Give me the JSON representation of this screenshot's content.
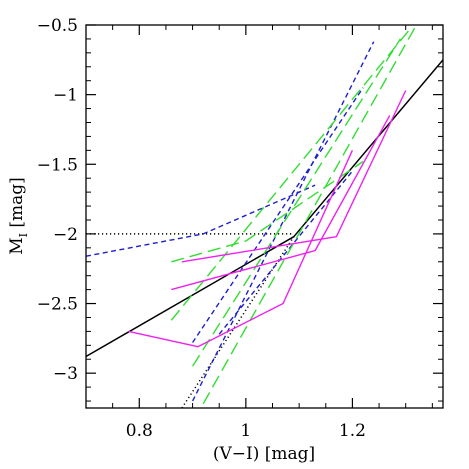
{
  "chart_data": {
    "type": "line",
    "title": "",
    "xlabel": "(V−I) [mag]",
    "ylabel_main": "M",
    "ylabel_sub": "I",
    "ylabel_unit": " [mag]",
    "xlim": [
      0.7,
      1.37
    ],
    "ylim": [
      -3.25,
      -0.5
    ],
    "y_inverted": true,
    "grid": false,
    "x_major_ticks": [
      0.8,
      1.0,
      1.2
    ],
    "x_major_tick_labels": [
      "0.8",
      "1",
      "1.2"
    ],
    "x_minor_step": 0.05,
    "y_major_ticks": [
      -0.5,
      -1,
      -1.5,
      -2,
      -2.5,
      -3
    ],
    "y_major_tick_labels": [
      "−0.5",
      "−1",
      "−1.5",
      "−2",
      "−2.5",
      "−3"
    ],
    "y_minor_step": 0.1,
    "colors": {
      "black": "#000000",
      "blue": "#1f1fcc",
      "green": "#33dd33",
      "magenta": "#ee22ee"
    },
    "series": [
      {
        "color": "black",
        "style": "solid",
        "points": [
          [
            0.7,
            -2.88
          ],
          [
            1.09,
            -2.02
          ],
          [
            1.37,
            -0.75
          ]
        ]
      },
      {
        "color": "black",
        "style": "dotted",
        "points": [
          [
            0.7,
            -2.0
          ],
          [
            1.09,
            -2.0
          ]
        ]
      },
      {
        "color": "black",
        "style": "dotted",
        "points": [
          [
            0.88,
            -3.25
          ],
          [
            1.09,
            -2.02
          ]
        ]
      },
      {
        "color": "blue",
        "style": "dash",
        "points": [
          [
            0.7,
            -2.16
          ],
          [
            0.92,
            -2.0
          ],
          [
            1.13,
            -1.65
          ]
        ]
      },
      {
        "color": "blue",
        "style": "dash",
        "points": [
          [
            0.9,
            -2.78
          ],
          [
            1.22,
            -0.95
          ]
        ]
      },
      {
        "color": "blue",
        "style": "dash",
        "points": [
          [
            0.9,
            -3.2
          ],
          [
            1.24,
            -0.62
          ]
        ]
      },
      {
        "color": "blue",
        "style": "dash",
        "points": [
          [
            0.95,
            -2.72
          ],
          [
            1.2,
            -1.55
          ]
        ]
      },
      {
        "color": "green",
        "style": "longdash",
        "points": [
          [
            0.86,
            -2.2
          ],
          [
            1.0,
            -2.05
          ],
          [
            1.22,
            -1.48
          ]
        ]
      },
      {
        "color": "green",
        "style": "longdash",
        "points": [
          [
            0.86,
            -2.62
          ],
          [
            1.31,
            -0.52
          ]
        ]
      },
      {
        "color": "green",
        "style": "longdash",
        "points": [
          [
            0.9,
            -2.95
          ],
          [
            1.29,
            -0.6
          ]
        ]
      },
      {
        "color": "green",
        "style": "longdash",
        "points": [
          [
            0.92,
            -3.22
          ],
          [
            1.32,
            -0.5
          ]
        ]
      },
      {
        "color": "magenta",
        "style": "solid",
        "points": [
          [
            0.86,
            -2.4
          ],
          [
            1.13,
            -2.12
          ],
          [
            1.27,
            -1.15
          ]
        ]
      },
      {
        "color": "magenta",
        "style": "solid",
        "points": [
          [
            0.88,
            -2.2
          ],
          [
            1.17,
            -2.02
          ],
          [
            1.3,
            -0.97
          ]
        ]
      },
      {
        "color": "magenta",
        "style": "solid",
        "points": [
          [
            0.78,
            -2.7
          ],
          [
            0.91,
            -2.81
          ],
          [
            1.07,
            -2.5
          ],
          [
            1.2,
            -1.4
          ]
        ]
      }
    ]
  }
}
